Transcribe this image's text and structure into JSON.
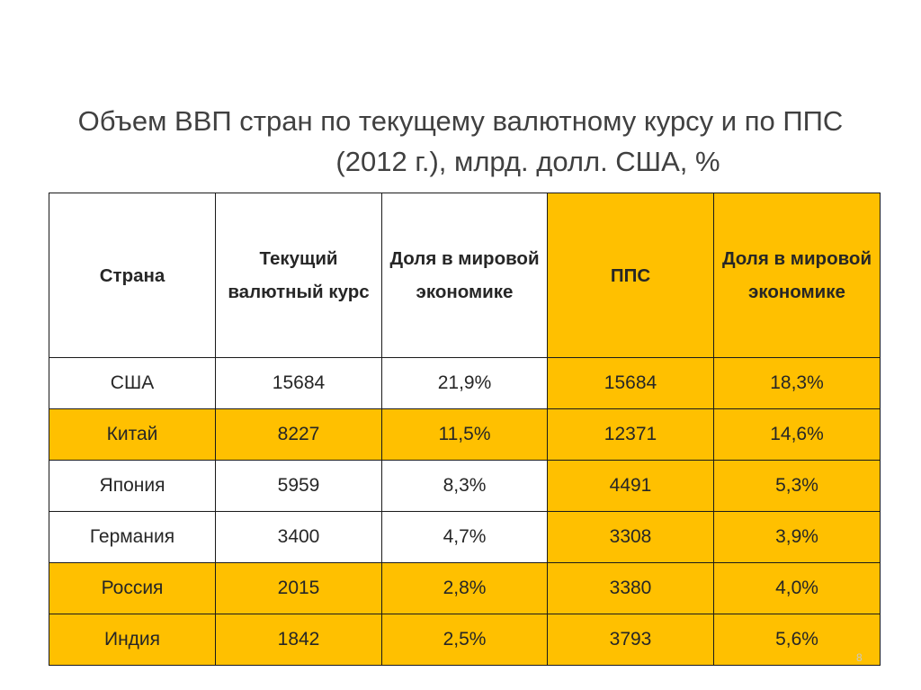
{
  "title": {
    "line1": "Объем ВВП стран по текущему валютному курсу и по ППС",
    "line2": "(2012 г.), млрд. долл. США, %"
  },
  "table": {
    "headers": [
      "Страна",
      "Текущий валютный курс",
      "Доля в мировой экономике",
      "ППС",
      "Доля в мировой экономике"
    ],
    "rows": [
      [
        "США",
        "15684",
        "21,9%",
        "15684",
        "18,3%"
      ],
      [
        "Китай",
        "8227",
        "11,5%",
        "12371",
        "14,6%"
      ],
      [
        "Япония",
        "5959",
        "8,3%",
        "4491",
        "5,3%"
      ],
      [
        "Германия",
        "3400",
        "4,7%",
        "3308",
        "3,9%"
      ],
      [
        "Россия",
        "2015",
        "2,8%",
        "3380",
        "4,0%"
      ],
      [
        "Индия",
        "1842",
        "2,5%",
        "3793",
        "5,6%"
      ]
    ]
  },
  "colors": {
    "highlight": "#ffc000",
    "border": "#1a1a1a",
    "text": "#262626"
  },
  "page_number": "8"
}
